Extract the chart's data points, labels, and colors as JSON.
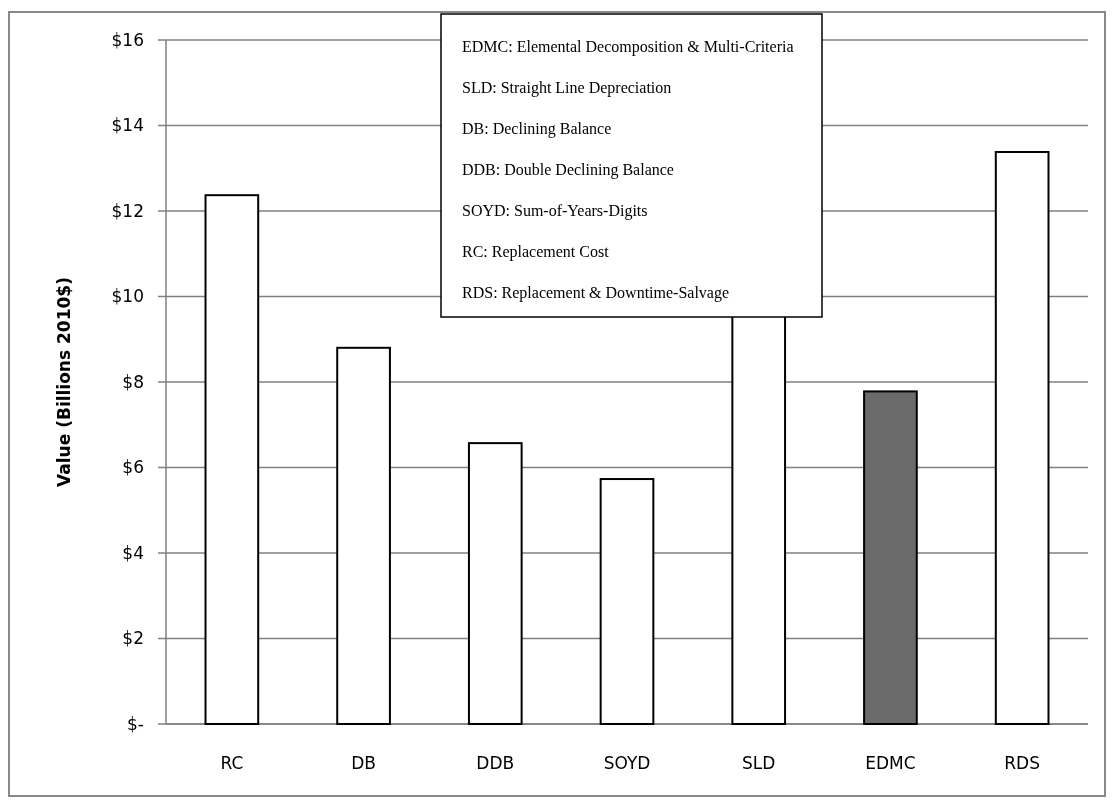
{
  "chart_data": {
    "type": "bar",
    "ylabel": "Value (Billions 2010$)",
    "categories": [
      "RC",
      "DB",
      "DDB",
      "SOYD",
      "SLD",
      "EDMC",
      "RDS"
    ],
    "values": [
      12.37,
      8.8,
      6.57,
      5.73,
      9.55,
      7.78,
      13.38
    ],
    "colors": [
      "#ffffff",
      "#ffffff",
      "#ffffff",
      "#ffffff",
      "#ffffff",
      "#6b6b6b",
      "#ffffff"
    ],
    "ylim": [
      0,
      16
    ],
    "yticks": [
      {
        "value": 0,
        "label": "$-"
      },
      {
        "value": 2,
        "label": "$2"
      },
      {
        "value": 4,
        "label": "$4"
      },
      {
        "value": 6,
        "label": "$6"
      },
      {
        "value": 8,
        "label": "$8"
      },
      {
        "value": 10,
        "label": "$10"
      },
      {
        "value": 12,
        "label": "$12"
      },
      {
        "value": 14,
        "label": "$14"
      },
      {
        "value": 16,
        "label": "$16"
      }
    ],
    "grid": "y",
    "annotations": [
      "EDMC: Elemental Decomposition & Multi-Criteria",
      "SLD: Straight Line Depreciation",
      "DB: Declining Balance",
      "DDB: Double Declining Balance",
      "SOYD: Sum-of-Years-Digits",
      "RC: Replacement Cost",
      "RDS: Replacement & Downtime-Salvage"
    ]
  }
}
